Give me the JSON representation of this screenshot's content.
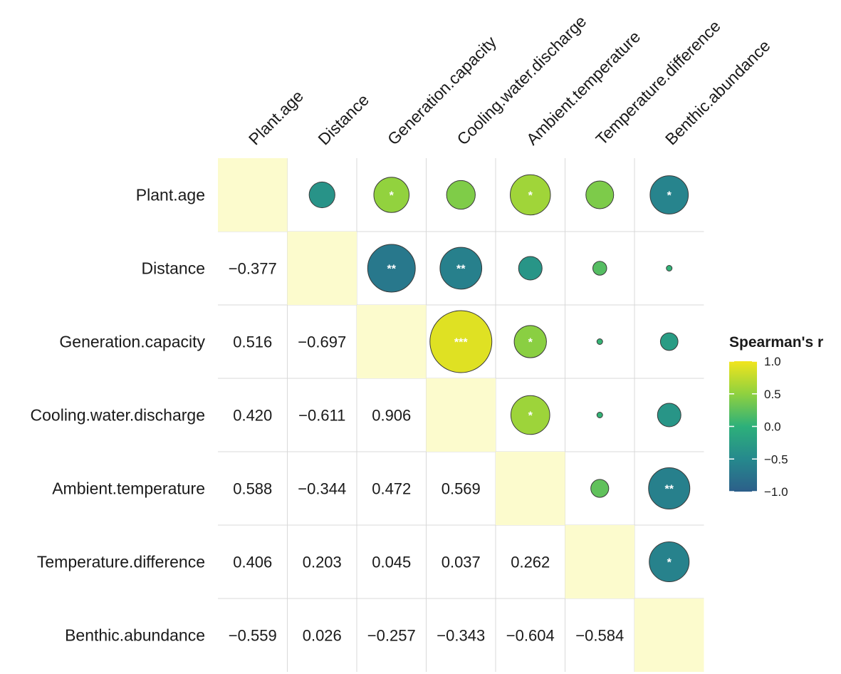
{
  "chart_data": {
    "type": "heatmap",
    "subtype": "correlation-matrix",
    "variables": [
      "Plant.age",
      "Distance",
      "Generation.capacity",
      "Cooling.water.discharge",
      "Ambient.temperature",
      "Temperature.difference",
      "Benthic.abundance"
    ],
    "correlations": [
      [
        1,
        -0.377,
        0.516,
        0.42,
        0.588,
        0.406,
        -0.559
      ],
      [
        -0.377,
        1,
        -0.697,
        -0.611,
        -0.344,
        0.203,
        0.026
      ],
      [
        0.516,
        -0.697,
        1,
        0.906,
        0.472,
        0.045,
        -0.257
      ],
      [
        0.42,
        -0.611,
        0.906,
        1,
        0.569,
        0.037,
        -0.343
      ],
      [
        0.588,
        -0.344,
        0.472,
        0.569,
        1,
        0.262,
        -0.604
      ],
      [
        0.406,
        0.203,
        0.045,
        0.037,
        0.262,
        1,
        -0.584
      ],
      [
        -0.559,
        0.026,
        -0.257,
        -0.343,
        -0.604,
        -0.584,
        1
      ]
    ],
    "lower_labels": [
      [
        null,
        null,
        null,
        null,
        null,
        null,
        null
      ],
      [
        "−0.377",
        null,
        null,
        null,
        null,
        null,
        null
      ],
      [
        "0.516",
        "−0.697",
        null,
        null,
        null,
        null,
        null
      ],
      [
        "0.420",
        "−0.611",
        "0.906",
        null,
        null,
        null,
        null
      ],
      [
        "0.588",
        "−0.344",
        "0.472",
        "0.569",
        null,
        null,
        null
      ],
      [
        "0.406",
        "0.203",
        "0.045",
        "0.037",
        "0.262",
        null,
        null
      ],
      [
        "−0.559",
        "0.026",
        "−0.257",
        "−0.343",
        "−0.604",
        "−0.584",
        null
      ]
    ],
    "significance": [
      [
        "",
        "",
        "*",
        "",
        "*",
        "",
        "*"
      ],
      [
        "",
        "",
        "**",
        "**",
        "",
        "",
        ""
      ],
      [
        "",
        "",
        "",
        "***",
        "*",
        "",
        ""
      ],
      [
        "",
        "",
        "",
        "",
        "*",
        "",
        ""
      ],
      [
        "",
        "",
        "",
        "",
        "",
        "",
        "**"
      ],
      [
        "",
        "",
        "",
        "",
        "",
        "",
        "*"
      ],
      [
        "",
        "",
        "",
        "",
        "",
        "",
        ""
      ]
    ],
    "legend": {
      "title": "Spearman's r",
      "ticks": [
        "1.0",
        "0.5",
        "0.0",
        "−0.5",
        "−1.0"
      ],
      "tick_values": [
        1.0,
        0.5,
        0.0,
        -0.5,
        -1.0
      ],
      "range": [
        -1,
        1
      ],
      "placement": "right"
    },
    "colors": {
      "diagonal": "#fcfbcd",
      "grid": "#d9d9d9",
      "circle_stroke": "#3a3a3a",
      "colorscale": [
        "#2c5f8a",
        "#26898d",
        "#2db07a",
        "#8fd13f",
        "#f1e51d"
      ]
    }
  }
}
